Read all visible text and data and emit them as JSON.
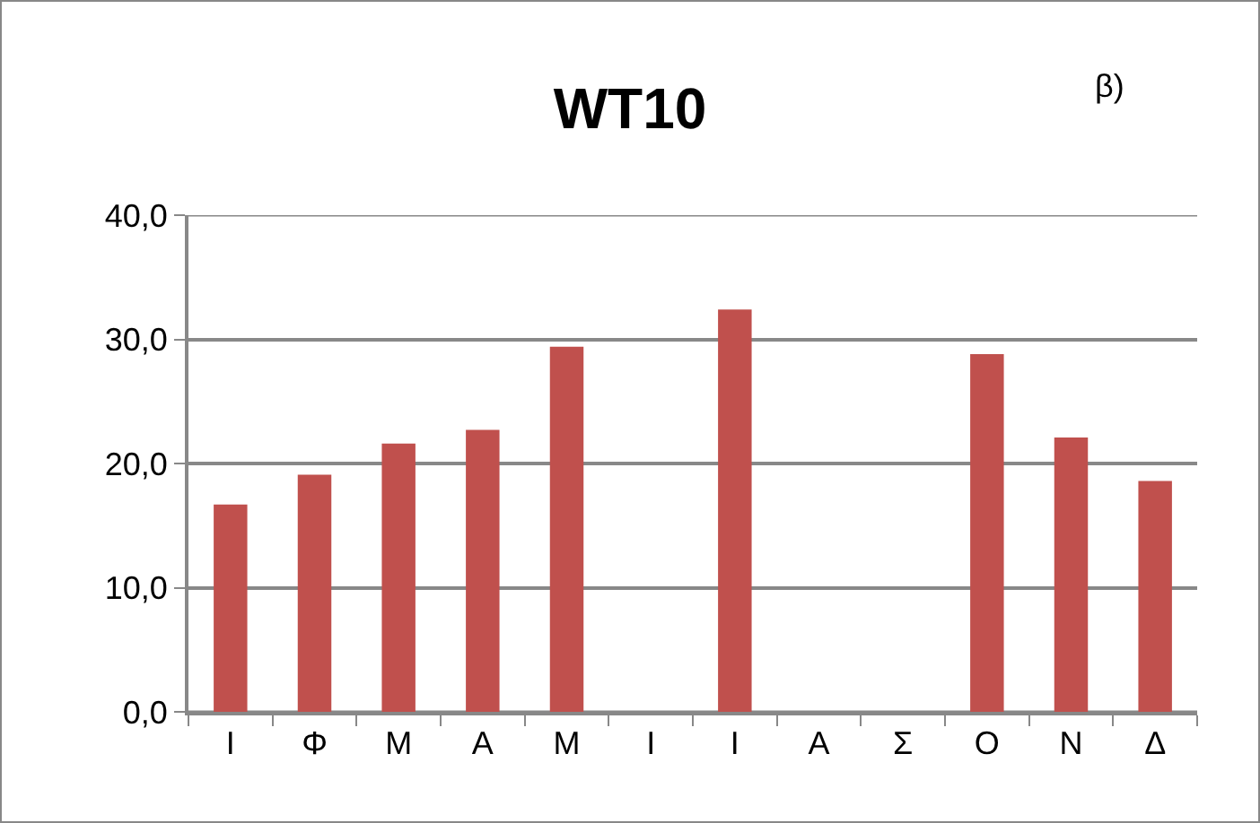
{
  "chart_data": {
    "type": "bar",
    "title": "WT10",
    "annotations": [
      "β)"
    ],
    "categories": [
      "Ι",
      "Φ",
      "Μ",
      "Α",
      "Μ",
      "Ι",
      "Ι",
      "Α",
      "Σ",
      "Ο",
      "Ν",
      "Δ"
    ],
    "values": [
      16.7,
      19.1,
      21.6,
      22.7,
      29.4,
      null,
      32.4,
      null,
      null,
      28.8,
      22.1,
      18.6
    ],
    "color": "#c0504d",
    "ylim": [
      0,
      40
    ],
    "yticks": [
      {
        "value": 0,
        "label": "0,0"
      },
      {
        "value": 10,
        "label": "10,0"
      },
      {
        "value": 20,
        "label": "20,0"
      },
      {
        "value": 30,
        "label": "30,0"
      },
      {
        "value": 40,
        "label": "40,0"
      }
    ],
    "grid": "y"
  }
}
